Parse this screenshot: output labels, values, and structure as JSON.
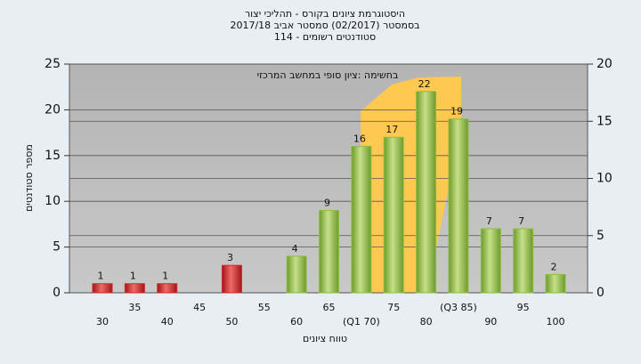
{
  "chart_data": {
    "type": "bar",
    "title": "היסטוגרמת ציונים בקורס - תהליכי יצור",
    "subtitle": "בסמסטר  (02/2017)  סמסטר אביב 2017/18",
    "subtitle2": "סטודנטים רשומים - 114",
    "annotation": "בחשימה :ציון סופי במחשב המרכזי",
    "y_label": "מספר סטודנטים",
    "x_label": "טווח ציונים",
    "categories": [
      "30",
      "35",
      "40",
      "45",
      "50",
      "55",
      "60",
      "65",
      "(Q1 70)",
      "75",
      "80",
      "(Q3 85)",
      "90",
      "95",
      "100"
    ],
    "values": [
      1,
      1,
      1,
      0,
      3,
      0,
      4,
      9,
      16,
      17,
      22,
      19,
      7,
      7,
      2
    ],
    "colors": [
      "#d42a2a",
      "#d42a2a",
      "#d42a2a",
      "#d42a2a",
      "#d42a2a",
      "#d42a2a",
      "#8cc040",
      "#8cc040",
      "#8cc040",
      "#8cc040",
      "#8cc040",
      "#8cc040",
      "#8cc040",
      "#8cc040",
      "#8cc040"
    ],
    "ylim": [
      0,
      25
    ],
    "yticks": [
      0,
      5,
      10,
      15,
      20,
      25
    ],
    "y2lim": [
      0,
      20
    ],
    "y2ticks": [
      0,
      5,
      10,
      15,
      20
    ],
    "grid": true
  }
}
